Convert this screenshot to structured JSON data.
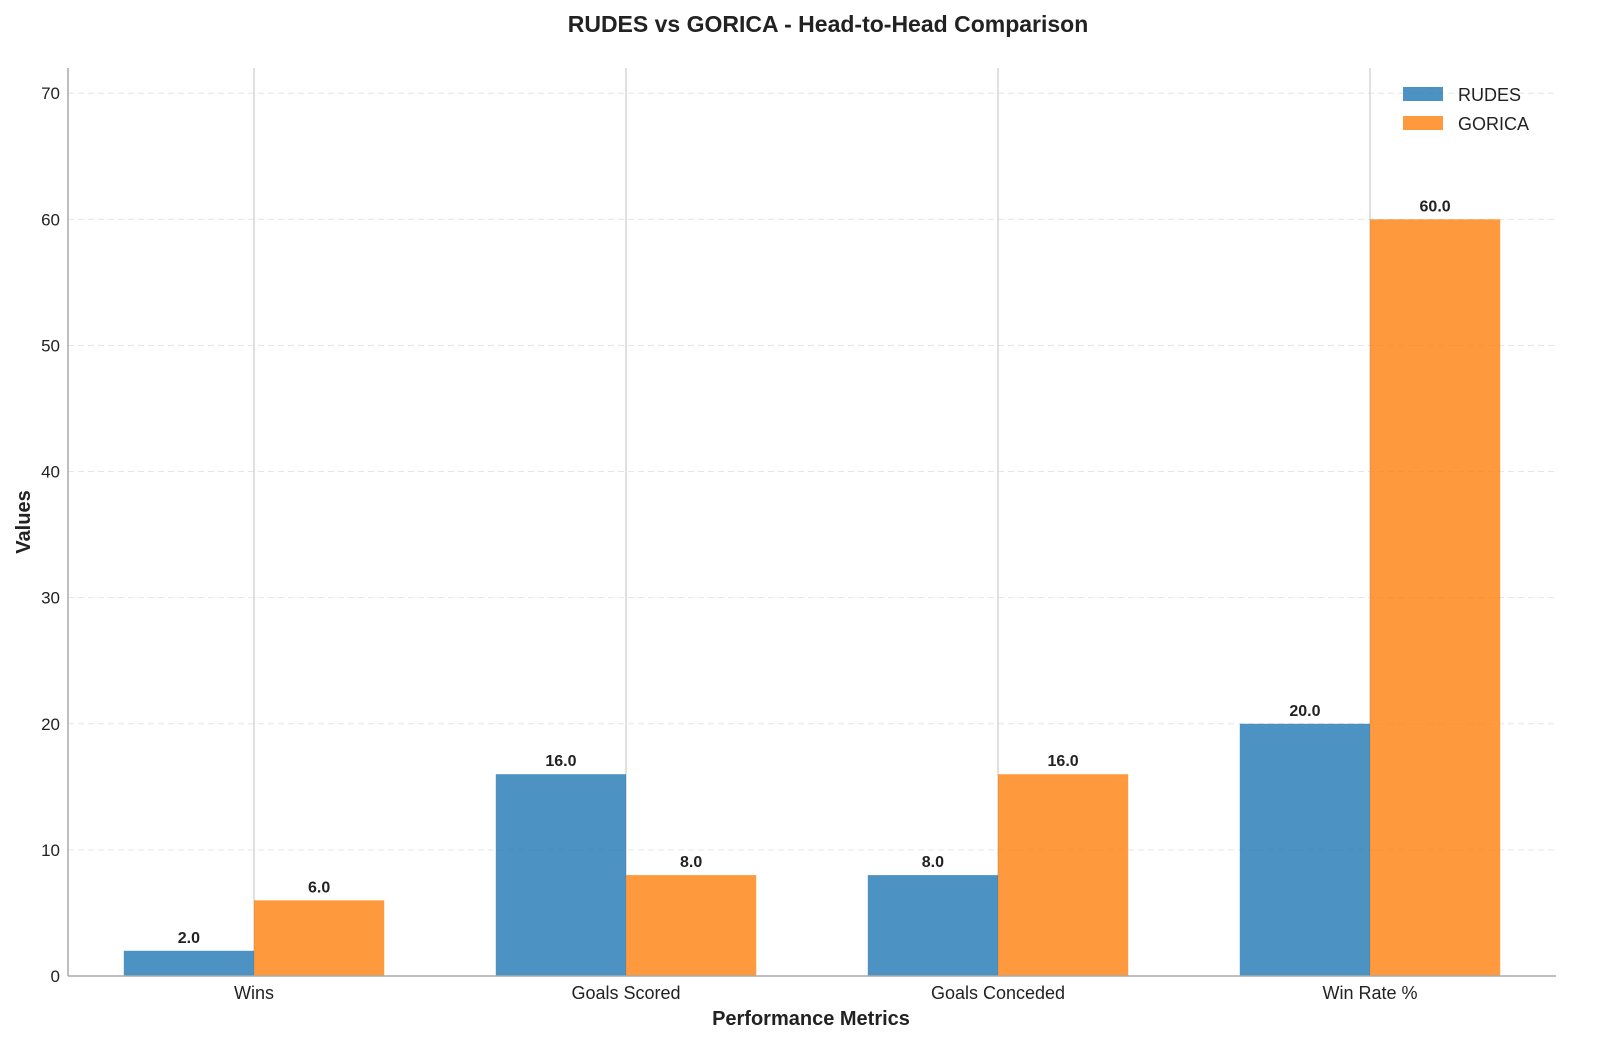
{
  "chart_data": {
    "type": "bar",
    "title": "RUDES vs GORICA - Head-to-Head Comparison",
    "xlabel": "Performance Metrics",
    "ylabel": "Values",
    "categories": [
      "Wins",
      "Goals Scored",
      "Goals Conceded",
      "Win Rate %"
    ],
    "series": [
      {
        "name": "RUDES",
        "color": "#1f77b4",
        "values": [
          2.0,
          16.0,
          8.0,
          20.0
        ],
        "value_labels": [
          "2.0",
          "16.0",
          "8.0",
          "20.0"
        ]
      },
      {
        "name": "GORICA",
        "color": "#ff7f0e",
        "values": [
          6.0,
          8.0,
          16.0,
          60.0
        ],
        "value_labels": [
          "6.0",
          "8.0",
          "16.0",
          "60.0"
        ]
      }
    ],
    "ylim": [
      0,
      72
    ],
    "yticks": [
      0,
      10,
      20,
      30,
      40,
      50,
      60,
      70
    ],
    "ytick_labels": [
      "0",
      "10",
      "20",
      "30",
      "40",
      "50",
      "60",
      "70"
    ],
    "grid": {
      "horizontal": "dashed",
      "vertical": "solid-at-categories"
    },
    "legend_position": "top-right"
  }
}
